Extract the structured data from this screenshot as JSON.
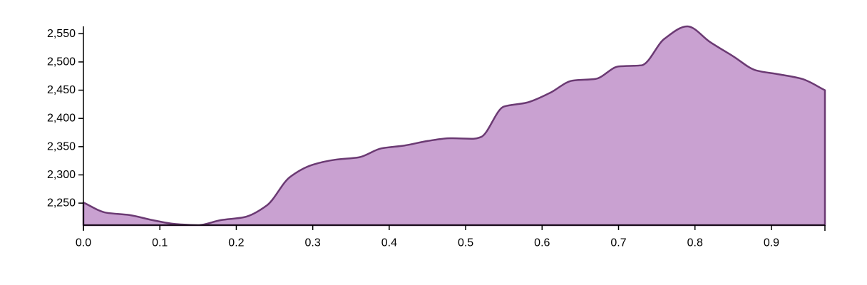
{
  "chart_data": {
    "type": "area",
    "title": "",
    "xlabel": "",
    "ylabel": "",
    "xlim": [
      0,
      0.97
    ],
    "ylim": [
      2211,
      2563
    ],
    "x_ticks": [
      "0.0",
      "0.1",
      "0.2",
      "0.3",
      "0.4",
      "0.5",
      "0.6",
      "0.7",
      "0.8",
      "0.9"
    ],
    "x_tick_values": [
      0,
      0.1,
      0.2,
      0.3,
      0.4,
      0.5,
      0.6,
      0.7,
      0.8,
      0.9
    ],
    "y_ticks": [
      "2,250",
      "2,300",
      "2,350",
      "2,400",
      "2,450",
      "2,500",
      "2,550"
    ],
    "y_tick_values": [
      2250,
      2300,
      2350,
      2400,
      2450,
      2500,
      2550
    ],
    "grid": false,
    "legend": "none",
    "series": [
      {
        "fill_color": "#c9a1d1",
        "line_color": "#6b3a73",
        "x": [
          0,
          0.03,
          0.06,
          0.09,
          0.12,
          0.15,
          0.18,
          0.21,
          0.24,
          0.27,
          0.3,
          0.33,
          0.36,
          0.39,
          0.42,
          0.45,
          0.48,
          0.51,
          0.52,
          0.55,
          0.58,
          0.61,
          0.64,
          0.67,
          0.7,
          0.73,
          0.76,
          0.79,
          0.82,
          0.85,
          0.88,
          0.91,
          0.94,
          0.97
        ],
        "y": [
          2251,
          2233,
          2229,
          2220,
          2213,
          2211,
          2220,
          2225,
          2246,
          2296,
          2318,
          2327,
          2331,
          2347,
          2352,
          2360,
          2365,
          2364,
          2367,
          2421,
          2428,
          2445,
          2467,
          2470,
          2492,
          2494,
          2541,
          2563,
          2535,
          2510,
          2485,
          2478,
          2470,
          2450
        ]
      }
    ]
  }
}
